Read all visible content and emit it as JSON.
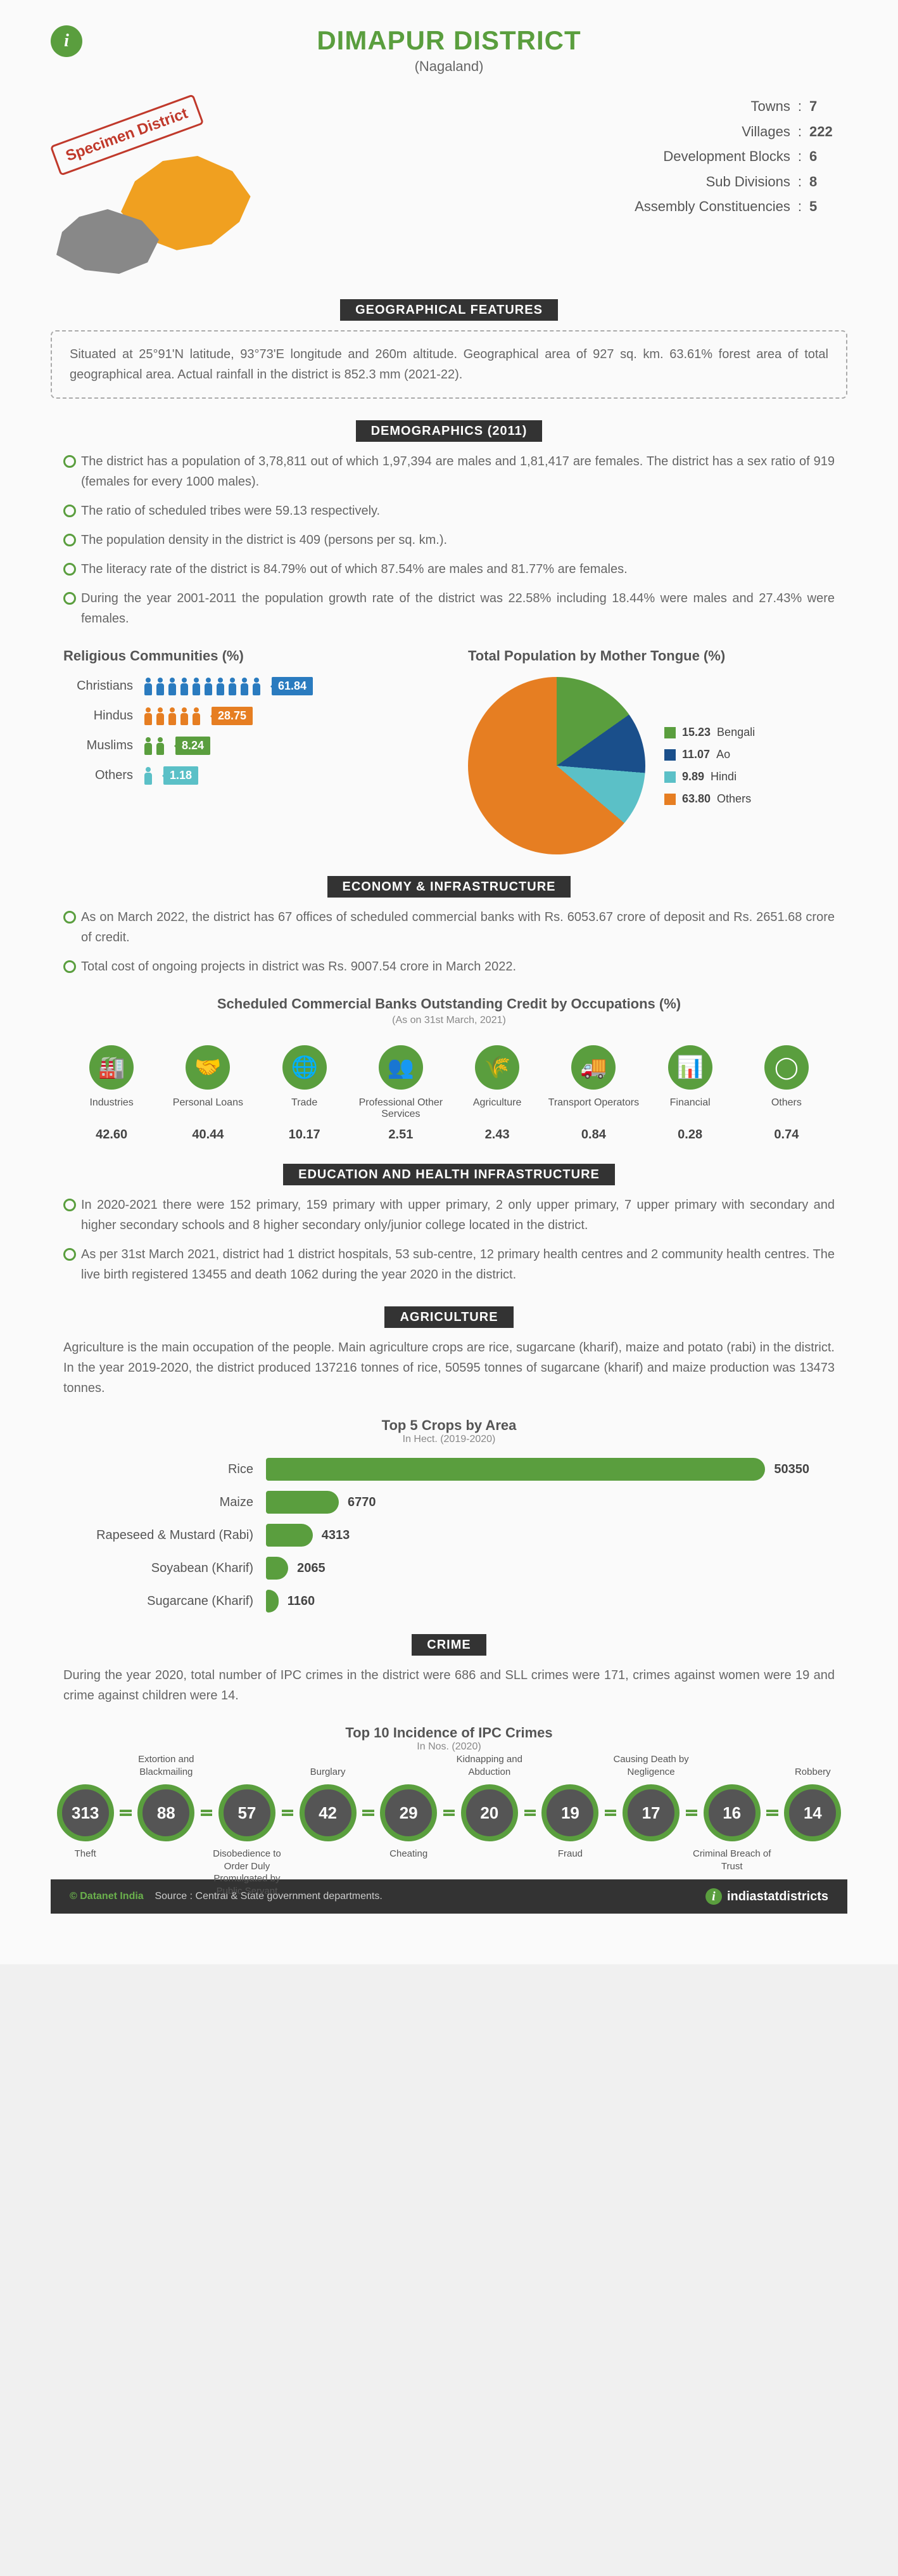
{
  "header": {
    "title": "DIMAPUR DISTRICT",
    "subtitle": "(Nagaland)",
    "specimen": "Specimen District"
  },
  "stats": [
    {
      "label": "Towns",
      "value": "7"
    },
    {
      "label": "Villages",
      "value": "222"
    },
    {
      "label": "Development Blocks",
      "value": "6"
    },
    {
      "label": "Sub Divisions",
      "value": "8"
    },
    {
      "label": "Assembly Constituencies",
      "value": "5"
    }
  ],
  "sections": {
    "geo_title": "GEOGRAPHICAL FEATURES",
    "geo_text": "Situated at 25°91'N latitude, 93°73'E longitude and 260m altitude. Geographical area of 927 sq. km. 63.61% forest area of total geographical area. Actual rainfall in the district is 852.3 mm (2021-22).",
    "demo_title": "DEMOGRAPHICS (2011)",
    "demo_bullets": [
      "The district has a population of 3,78,811 out of which 1,97,394 are males and 1,81,417 are females. The district has a sex ratio of 919 (females for every 1000 males).",
      "The ratio of scheduled tribes were 59.13 respectively.",
      "The population density in the district is 409 (persons per sq. km.).",
      "The literacy rate of the district is 84.79% out of which 87.54% are males and 81.77% are females.",
      "During the year 2001-2011 the population growth rate of the district was 22.58% including 18.44% were males and 27.43% were females."
    ],
    "relig_title": "Religious Communities (%)",
    "tongue_title": "Total Population by Mother Tongue (%)",
    "econ_title": "ECONOMY & INFRASTRUCTURE",
    "econ_bullets": [
      "As on March 2022, the district has 67 offices of scheduled commercial banks with Rs. 6053.67 crore of deposit and Rs. 2651.68 crore of credit.",
      "Total cost of ongoing projects in district was Rs. 9007.54 crore in March 2022."
    ],
    "credit_title": "Scheduled Commercial Banks Outstanding Credit by Occupations (%)",
    "credit_sub": "(As on 31st March, 2021)",
    "edu_title": "EDUCATION AND HEALTH INFRASTRUCTURE",
    "edu_bullets": [
      "In 2020-2021 there were 152 primary, 159 primary with upper primary, 2 only upper primary, 7 upper primary with secondary and higher secondary schools and 8 higher secondary only/junior college located in the district.",
      "As per 31st March 2021, district had 1 district hospitals, 53 sub-centre, 12 primary health centres and 2 community health centres. The live birth registered 13455 and death 1062 during the year 2020 in the district."
    ],
    "agri_title": "AGRICULTURE",
    "agri_text": "Agriculture is the main occupation of the people. Main agriculture crops are rice, sugarcane (kharif), maize and potato (rabi) in the district. In the year 2019-2020, the district produced 137216 tonnes of rice, 50595 tonnes of sugarcane (kharif) and maize production was 13473 tonnes.",
    "crops_title": "Top 5 Crops by Area",
    "crops_sub": "In Hect. (2019-2020)",
    "crime_title": "CRIME",
    "crime_text": "During the year 2020, total number of IPC crimes in the district were 686 and SLL crimes were 171, crimes against women were 19 and crime against children were 14.",
    "ipc_title": "Top 10 Incidence of IPC Crimes",
    "ipc_sub": "In Nos. (2020)"
  },
  "religion": [
    {
      "label": "Christians",
      "value": "61.84",
      "count": 10,
      "color": "#2a7bbf"
    },
    {
      "label": "Hindus",
      "value": "28.75",
      "count": 5,
      "color": "#e67e22"
    },
    {
      "label": "Muslims",
      "value": "8.24",
      "count": 2,
      "color": "#5a9e3e"
    },
    {
      "label": "Others",
      "value": "1.18",
      "count": 1,
      "color": "#5bc0c7"
    }
  ],
  "tongue": {
    "items": [
      {
        "label": "Bengali",
        "value": "15.23",
        "color": "#5a9e3e"
      },
      {
        "label": "Ao",
        "value": "11.07",
        "color": "#1a4f8b"
      },
      {
        "label": "Hindi",
        "value": "9.89",
        "color": "#5bc0c7"
      },
      {
        "label": "Others",
        "value": "63.80",
        "color": "#e67e22"
      }
    ],
    "pie_bg": "conic-gradient(#5a9e3e 0 15.23%, #1a4f8b 15.23% 26.3%, #5bc0c7 26.3% 36.19%, #e67e22 36.19% 100%)"
  },
  "credit": [
    {
      "label": "Industries",
      "value": "42.60",
      "icon": "🏭"
    },
    {
      "label": "Personal Loans",
      "value": "40.44",
      "icon": "🤝"
    },
    {
      "label": "Trade",
      "value": "10.17",
      "icon": "🌐"
    },
    {
      "label": "Professional Other Services",
      "value": "2.51",
      "icon": "👥"
    },
    {
      "label": "Agriculture",
      "value": "2.43",
      "icon": "🌾"
    },
    {
      "label": "Transport Operators",
      "value": "0.84",
      "icon": "🚚"
    },
    {
      "label": "Financial",
      "value": "0.28",
      "icon": "📊"
    },
    {
      "label": "Others",
      "value": "0.74",
      "icon": "◯"
    }
  ],
  "crops": [
    {
      "label": "Rice",
      "value": 50350,
      "display": "50350"
    },
    {
      "label": "Maize",
      "value": 6770,
      "display": "6770"
    },
    {
      "label": "Rapeseed & Mustard (Rabi)",
      "value": 4313,
      "display": "4313"
    },
    {
      "label": "Soyabean (Kharif)",
      "value": 2065,
      "display": "2065"
    },
    {
      "label": "Sugarcane (Kharif)",
      "value": 1160,
      "display": "1160"
    }
  ],
  "crops_max": 50350,
  "ipc": [
    {
      "value": "313",
      "label": "Theft",
      "pos": "bot"
    },
    {
      "value": "88",
      "label": "Extortion and Blackmailing",
      "pos": "top"
    },
    {
      "value": "57",
      "label": "Disobedience to Order Duly Promulgated by Public Servant",
      "pos": "bot"
    },
    {
      "value": "42",
      "label": "Burglary",
      "pos": "top"
    },
    {
      "value": "29",
      "label": "Cheating",
      "pos": "bot"
    },
    {
      "value": "20",
      "label": "Kidnapping and Abduction",
      "pos": "top"
    },
    {
      "value": "19",
      "label": "Fraud",
      "pos": "bot"
    },
    {
      "value": "17",
      "label": "Causing Death by Negligence",
      "pos": "top"
    },
    {
      "value": "16",
      "label": "Criminal Breach of Trust",
      "pos": "bot"
    },
    {
      "value": "14",
      "label": "Robbery",
      "pos": "top"
    }
  ],
  "footer": {
    "copyright": "© Datanet India",
    "source": "Source : Central & State government departments.",
    "brand": "indiastatdistricts"
  }
}
